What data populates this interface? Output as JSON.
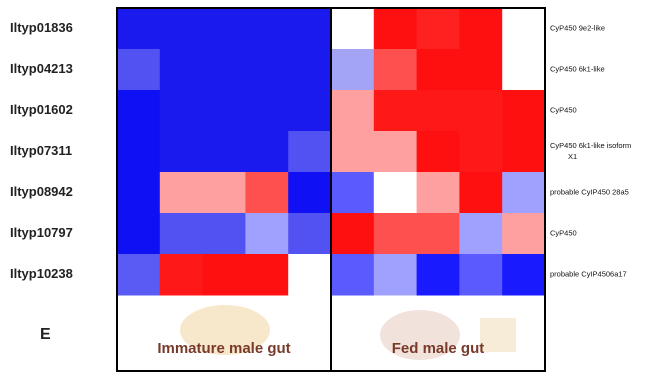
{
  "panel_label": "E",
  "rows": [
    {
      "id": "Iltyp01836",
      "annotation": [
        "CyP450 9e2-like"
      ],
      "cells": [
        "#1a1aee",
        "#1a1aee",
        "#1a1aee",
        "#1a1aee",
        "#1a1aee",
        "#ffffff",
        "#ff1010",
        "#ff2020",
        "#ff1010",
        "#ffffff"
      ]
    },
    {
      "id": "Iltyp04213",
      "annotation": [
        "CyP450 6k1-like"
      ],
      "cells": [
        "#5252f2",
        "#1a1aee",
        "#1a1aee",
        "#1a1aee",
        "#1a1aee",
        "#a4a4f4",
        "#ff5050",
        "#ff1010",
        "#ff1010",
        "#ffffff"
      ]
    },
    {
      "id": "Iltyp01602",
      "annotation": [
        "CyP450"
      ],
      "cells": [
        "#1010f4",
        "#1a1aee",
        "#1a1aee",
        "#1a1aee",
        "#1a1aee",
        "#ffa0a0",
        "#ff1818",
        "#ff1818",
        "#ff1818",
        "#ff1010"
      ]
    },
    {
      "id": "Iltyp07311",
      "annotation": [
        "CyP450 6k1-like isoform",
        "X1"
      ],
      "cells": [
        "#1010f4",
        "#1a1aee",
        "#1a1aee",
        "#1a1aee",
        "#5252f2",
        "#ffa0a0",
        "#ffa0a0",
        "#ff1010",
        "#ff1818",
        "#ff1010"
      ]
    },
    {
      "id": "Iltyp08942",
      "annotation": [
        "probable CyIP450 28a5"
      ],
      "cells": [
        "#1010f4",
        "#ffa0a0",
        "#ffa0a0",
        "#ff5050",
        "#1010f4",
        "#5a5aff",
        "#ffffff",
        "#ffa0a0",
        "#ff1010",
        "#a0a0ff"
      ]
    },
    {
      "id": "Iltyp10797",
      "annotation": [
        "CyP450"
      ],
      "cells": [
        "#1010f4",
        "#5252f2",
        "#5252f2",
        "#a0a0ff",
        "#5252f2",
        "#ff1010",
        "#ff5050",
        "#ff5050",
        "#a0a0ff",
        "#ffa0a0"
      ]
    },
    {
      "id": "Iltyp10238",
      "annotation": [
        "probable CyIP4506a17"
      ],
      "cells": [
        "#5a5af4",
        "#ff1818",
        "#ff1010",
        "#ff1010",
        "#ffffff",
        "#5a5aff",
        "#a0a0ff",
        "#1a1aff",
        "#5a5aff",
        "#1a1aff"
      ]
    }
  ],
  "groups": [
    "Immature male gut",
    "Fed male gut"
  ]
}
